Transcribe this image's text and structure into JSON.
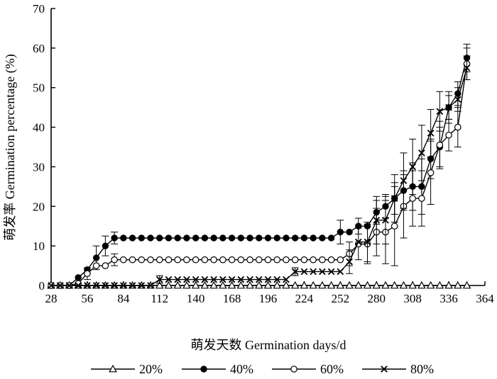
{
  "chart_data": {
    "type": "line",
    "xlabel": "萌发天数 Germination days/d",
    "ylabel": "萌发率 Germination percentage (%)",
    "xlim": [
      28,
      364
    ],
    "ylim": [
      0,
      70
    ],
    "xticks": [
      28,
      56,
      84,
      112,
      140,
      168,
      196,
      224,
      252,
      280,
      308,
      336,
      364
    ],
    "yticks": [
      0,
      10,
      20,
      30,
      40,
      50,
      60,
      70
    ],
    "legend_position": "bottom",
    "series": [
      {
        "name": "20%",
        "marker": "triangle-open",
        "points": [
          [
            28,
            0
          ],
          [
            35,
            0
          ],
          [
            42,
            0
          ],
          [
            49,
            0
          ],
          [
            56,
            0
          ],
          [
            63,
            0
          ],
          [
            70,
            0
          ],
          [
            77,
            0
          ],
          [
            84,
            0
          ],
          [
            91,
            0
          ],
          [
            98,
            0
          ],
          [
            105,
            0
          ],
          [
            112,
            0
          ],
          [
            119,
            0
          ],
          [
            126,
            0
          ],
          [
            133,
            0
          ],
          [
            140,
            0
          ],
          [
            147,
            0
          ],
          [
            154,
            0
          ],
          [
            161,
            0
          ],
          [
            168,
            0
          ],
          [
            175,
            0
          ],
          [
            182,
            0
          ],
          [
            189,
            0
          ],
          [
            196,
            0
          ],
          [
            203,
            0
          ],
          [
            210,
            0
          ],
          [
            217,
            0
          ],
          [
            224,
            0
          ],
          [
            231,
            0
          ],
          [
            238,
            0
          ],
          [
            245,
            0
          ],
          [
            252,
            0
          ],
          [
            259,
            0
          ],
          [
            266,
            0
          ],
          [
            273,
            0
          ],
          [
            280,
            0
          ],
          [
            287,
            0
          ],
          [
            294,
            0
          ],
          [
            301,
            0
          ],
          [
            308,
            0
          ],
          [
            315,
            0
          ],
          [
            322,
            0
          ],
          [
            329,
            0
          ],
          [
            336,
            0
          ],
          [
            343,
            0
          ],
          [
            350,
            0
          ]
        ],
        "errors": []
      },
      {
        "name": "40%",
        "marker": "circle-filled",
        "points": [
          [
            28,
            0
          ],
          [
            35,
            0
          ],
          [
            42,
            0
          ],
          [
            49,
            2
          ],
          [
            56,
            4
          ],
          [
            63,
            7
          ],
          [
            70,
            10
          ],
          [
            77,
            12
          ],
          [
            84,
            12
          ],
          [
            91,
            12
          ],
          [
            98,
            12
          ],
          [
            105,
            12
          ],
          [
            112,
            12
          ],
          [
            119,
            12
          ],
          [
            126,
            12
          ],
          [
            133,
            12
          ],
          [
            140,
            12
          ],
          [
            147,
            12
          ],
          [
            154,
            12
          ],
          [
            161,
            12
          ],
          [
            168,
            12
          ],
          [
            175,
            12
          ],
          [
            182,
            12
          ],
          [
            189,
            12
          ],
          [
            196,
            12
          ],
          [
            203,
            12
          ],
          [
            210,
            12
          ],
          [
            217,
            12
          ],
          [
            224,
            12
          ],
          [
            231,
            12
          ],
          [
            238,
            12
          ],
          [
            245,
            12
          ],
          [
            252,
            13.5
          ],
          [
            259,
            13.5
          ],
          [
            266,
            15
          ],
          [
            273,
            15
          ],
          [
            280,
            18.5
          ],
          [
            287,
            20
          ],
          [
            294,
            22
          ],
          [
            301,
            24
          ],
          [
            308,
            25
          ],
          [
            315,
            25
          ],
          [
            322,
            32
          ],
          [
            329,
            35
          ],
          [
            336,
            45
          ],
          [
            343,
            48.5
          ],
          [
            350,
            57.5
          ]
        ],
        "errors": [
          [
            63,
            3
          ],
          [
            70,
            2.5
          ],
          [
            77,
            1.5
          ],
          [
            252,
            3
          ],
          [
            266,
            2
          ],
          [
            280,
            3
          ],
          [
            287,
            3
          ],
          [
            294,
            4
          ],
          [
            301,
            5
          ],
          [
            308,
            6
          ],
          [
            315,
            7
          ],
          [
            322,
            5
          ],
          [
            329,
            5
          ],
          [
            336,
            3
          ],
          [
            343,
            3
          ],
          [
            350,
            3.5
          ]
        ]
      },
      {
        "name": "60%",
        "marker": "circle-open",
        "points": [
          [
            28,
            0
          ],
          [
            35,
            0
          ],
          [
            42,
            0
          ],
          [
            49,
            0.5
          ],
          [
            56,
            3
          ],
          [
            63,
            5
          ],
          [
            70,
            5
          ],
          [
            77,
            6.5
          ],
          [
            84,
            6.5
          ],
          [
            91,
            6.5
          ],
          [
            98,
            6.5
          ],
          [
            105,
            6.5
          ],
          [
            112,
            6.5
          ],
          [
            119,
            6.5
          ],
          [
            126,
            6.5
          ],
          [
            133,
            6.5
          ],
          [
            140,
            6.5
          ],
          [
            147,
            6.5
          ],
          [
            154,
            6.5
          ],
          [
            161,
            6.5
          ],
          [
            168,
            6.5
          ],
          [
            175,
            6.5
          ],
          [
            182,
            6.5
          ],
          [
            189,
            6.5
          ],
          [
            196,
            6.5
          ],
          [
            203,
            6.5
          ],
          [
            210,
            6.5
          ],
          [
            217,
            6.5
          ],
          [
            224,
            6.5
          ],
          [
            231,
            6.5
          ],
          [
            238,
            6.5
          ],
          [
            245,
            6.5
          ],
          [
            252,
            6.5
          ],
          [
            259,
            8
          ],
          [
            266,
            10.5
          ],
          [
            273,
            10.5
          ],
          [
            280,
            13.5
          ],
          [
            287,
            13.5
          ],
          [
            294,
            15
          ],
          [
            301,
            20
          ],
          [
            308,
            22
          ],
          [
            315,
            22
          ],
          [
            322,
            28.5
          ],
          [
            329,
            35.5
          ],
          [
            336,
            38
          ],
          [
            343,
            40
          ],
          [
            350,
            56
          ]
        ],
        "errors": [
          [
            56,
            1.5
          ],
          [
            77,
            1.5
          ],
          [
            259,
            3
          ],
          [
            266,
            4
          ],
          [
            273,
            5
          ],
          [
            280,
            6
          ],
          [
            287,
            8
          ],
          [
            294,
            10
          ],
          [
            301,
            8
          ],
          [
            308,
            7
          ],
          [
            315,
            7
          ],
          [
            322,
            8
          ],
          [
            329,
            6
          ],
          [
            336,
            4
          ],
          [
            343,
            5
          ],
          [
            350,
            4
          ]
        ]
      },
      {
        "name": "80%",
        "marker": "x",
        "points": [
          [
            28,
            0
          ],
          [
            35,
            0
          ],
          [
            42,
            0
          ],
          [
            49,
            0
          ],
          [
            56,
            0
          ],
          [
            63,
            0
          ],
          [
            70,
            0
          ],
          [
            77,
            0
          ],
          [
            84,
            0
          ],
          [
            91,
            0
          ],
          [
            98,
            0
          ],
          [
            105,
            0
          ],
          [
            112,
            1.5
          ],
          [
            119,
            1.5
          ],
          [
            126,
            1.5
          ],
          [
            133,
            1.5
          ],
          [
            140,
            1.5
          ],
          [
            147,
            1.5
          ],
          [
            154,
            1.5
          ],
          [
            161,
            1.5
          ],
          [
            168,
            1.5
          ],
          [
            175,
            1.5
          ],
          [
            182,
            1.5
          ],
          [
            189,
            1.5
          ],
          [
            196,
            1.5
          ],
          [
            203,
            1.5
          ],
          [
            210,
            1.5
          ],
          [
            217,
            3.5
          ],
          [
            224,
            3.5
          ],
          [
            231,
            3.5
          ],
          [
            238,
            3.5
          ],
          [
            245,
            3.5
          ],
          [
            252,
            3.5
          ],
          [
            259,
            6
          ],
          [
            266,
            11
          ],
          [
            273,
            11
          ],
          [
            280,
            16.5
          ],
          [
            287,
            16.5
          ],
          [
            294,
            22
          ],
          [
            301,
            26.5
          ],
          [
            308,
            30
          ],
          [
            315,
            33.5
          ],
          [
            322,
            38.5
          ],
          [
            329,
            44
          ],
          [
            336,
            45
          ],
          [
            343,
            47
          ],
          [
            350,
            55
          ]
        ],
        "errors": [
          [
            112,
            1
          ],
          [
            217,
            1
          ],
          [
            259,
            3
          ],
          [
            273,
            5
          ],
          [
            280,
            6
          ],
          [
            287,
            6
          ],
          [
            294,
            6
          ],
          [
            301,
            7
          ],
          [
            308,
            7
          ],
          [
            315,
            7
          ],
          [
            322,
            6
          ],
          [
            329,
            5
          ],
          [
            336,
            4
          ],
          [
            343,
            3
          ],
          [
            350,
            3
          ]
        ]
      }
    ]
  }
}
